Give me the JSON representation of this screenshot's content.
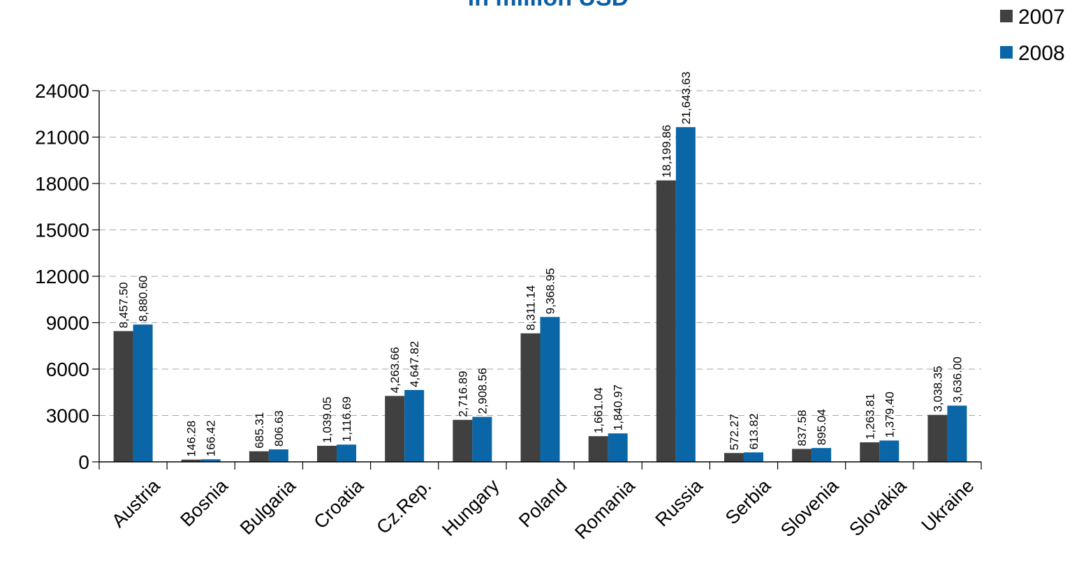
{
  "chart_data": {
    "type": "bar",
    "title": "in million USD",
    "categories": [
      "Austria",
      "Bosnia",
      "Bulgaria",
      "Croatia",
      "Cz.Rep.",
      "Hungary",
      "Poland",
      "Romania",
      "Russia",
      "Serbia",
      "Slovenia",
      "Slovakia",
      "Ukraine"
    ],
    "series": [
      {
        "name": "2007",
        "color": "#404040",
        "values": [
          8457.5,
          146.28,
          685.31,
          1039.05,
          4263.66,
          2716.89,
          8311.14,
          1661.04,
          18199.86,
          572.27,
          837.58,
          1263.81,
          3038.35
        ],
        "labels": [
          "8,457.50",
          "146.28",
          "685.31",
          "1,039.05",
          "4,263.66",
          "2,716.89",
          "8,311.14",
          "1,661.04",
          "18,199.86",
          "572.27",
          "837.58",
          "1,263.81",
          "3,038.35"
        ]
      },
      {
        "name": "2008",
        "color": "#0a66a6",
        "values": [
          8880.6,
          166.42,
          806.63,
          1116.69,
          4647.82,
          2908.56,
          9368.95,
          1840.97,
          21643.63,
          613.82,
          895.04,
          1379.4,
          3636.0
        ],
        "labels": [
          "8,880.60",
          "166.42",
          "806.63",
          "1,116.69",
          "4,647.82",
          "2,908.56",
          "9,368.95",
          "1,840.97",
          "21,643.63",
          "613.82",
          "895.04",
          "1,379.40",
          "3,636.00"
        ]
      }
    ],
    "yticks": [
      "0",
      "3000",
      "6000",
      "9000",
      "12000",
      "15000",
      "18000",
      "21000",
      "24000"
    ],
    "ylim": [
      0,
      24000
    ],
    "grid": true,
    "legend_position": "top-right"
  }
}
